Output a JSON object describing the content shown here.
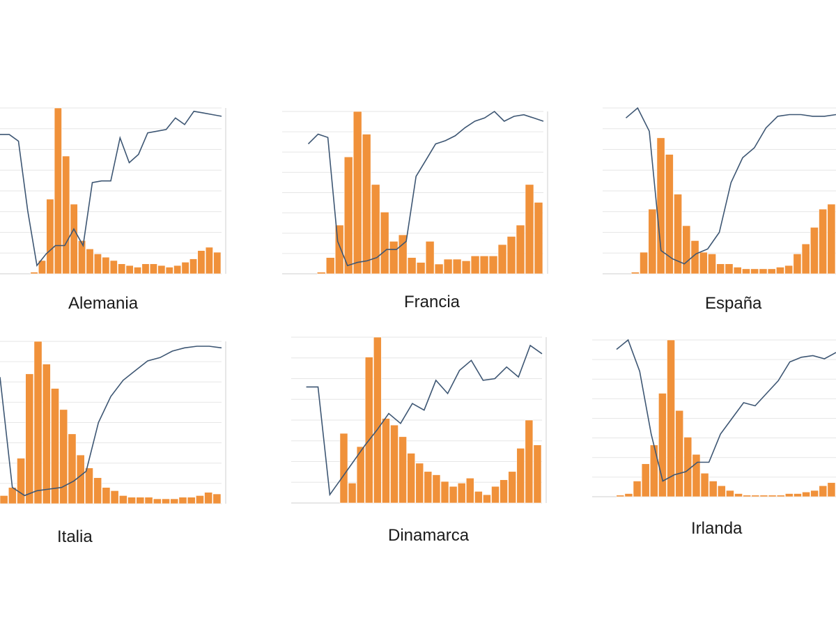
{
  "colors": {
    "bar": "#f0913a",
    "bar_edge": "#ffffff",
    "line": "#3d5673",
    "grid": "#e6e6e6",
    "axis": "#cfcfcf"
  },
  "chart_data": [
    {
      "type": "bar",
      "title": "Alemania",
      "series": [
        {
          "name": "",
          "type": "bar",
          "values": [
            0,
            0,
            0,
            1,
            8,
            45,
            100,
            71,
            42,
            20,
            15,
            12,
            10,
            8,
            6,
            5,
            4,
            6,
            6,
            5,
            4,
            5,
            7,
            9,
            14,
            16,
            13
          ]
        },
        {
          "name": "",
          "type": "line",
          "values": [
            84,
            84,
            80,
            38,
            5,
            12,
            17,
            17,
            27,
            17,
            55,
            56,
            56,
            82,
            67,
            72,
            85,
            86,
            87,
            94,
            90,
            98,
            97,
            96,
            95
          ]
        }
      ],
      "ylim": [
        0,
        100
      ],
      "y2lim": [
        0,
        100
      ],
      "grid": true
    },
    {
      "type": "bar",
      "title": "Francia",
      "series": [
        {
          "name": "",
          "type": "bar",
          "values": [
            0,
            0,
            0,
            1,
            10,
            30,
            72,
            100,
            86,
            55,
            38,
            20,
            24,
            10,
            7,
            20,
            6,
            9,
            9,
            8,
            11,
            11,
            11,
            18,
            23,
            30,
            55,
            44
          ]
        },
        {
          "name": "",
          "type": "line",
          "values": [
            80,
            86,
            84,
            20,
            5,
            7,
            8,
            10,
            15,
            15,
            20,
            60,
            70,
            80,
            82,
            85,
            90,
            94,
            96,
            100,
            94,
            97,
            98,
            96,
            94
          ]
        }
      ],
      "ylim": [
        0,
        100
      ],
      "y2lim": [
        0,
        100
      ],
      "grid": true
    },
    {
      "type": "bar",
      "title": "España",
      "series": [
        {
          "name": "",
          "type": "bar",
          "values": [
            0,
            0,
            1,
            13,
            39,
            82,
            72,
            48,
            29,
            20,
            13,
            12,
            6,
            6,
            4,
            3,
            3,
            3,
            3,
            4,
            5,
            12,
            18,
            28,
            39,
            42
          ]
        },
        {
          "name": "",
          "type": "line",
          "values": [
            94,
            100,
            86,
            14,
            9,
            6,
            12,
            15,
            25,
            55,
            70,
            76,
            88,
            95,
            96,
            96,
            95,
            95,
            96
          ]
        }
      ],
      "ylim": [
        0,
        100
      ],
      "y2lim": [
        0,
        100
      ],
      "grid": true
    },
    {
      "type": "bar",
      "title": "Italia",
      "series": [
        {
          "name": "",
          "type": "bar",
          "values": [
            5,
            10,
            28,
            80,
            100,
            86,
            71,
            58,
            43,
            30,
            22,
            16,
            10,
            8,
            5,
            4,
            4,
            4,
            3,
            3,
            3,
            4,
            4,
            5,
            7,
            6
          ]
        },
        {
          "name": "",
          "type": "line",
          "values": [
            78,
            10,
            5,
            8,
            9,
            10,
            14,
            20,
            50,
            66,
            76,
            82,
            88,
            90,
            94,
            96,
            97,
            97,
            96
          ]
        }
      ],
      "ylim": [
        0,
        100
      ],
      "y2lim": [
        0,
        100
      ],
      "grid": true
    },
    {
      "type": "bar",
      "title": "Dinamarca",
      "series": [
        {
          "name": "",
          "type": "bar",
          "values": [
            0,
            0,
            0,
            0,
            42,
            12,
            34,
            88,
            100,
            51,
            47,
            40,
            30,
            24,
            19,
            17,
            13,
            10,
            12,
            15,
            7,
            5,
            10,
            14,
            19,
            33,
            50,
            35
          ]
        },
        {
          "name": "",
          "type": "line",
          "values": [
            70,
            70,
            5,
            15,
            25,
            35,
            44,
            54,
            48,
            60,
            56,
            74,
            66,
            80,
            86,
            74,
            75,
            82,
            76,
            95,
            90
          ]
        }
      ],
      "ylim": [
        0,
        100
      ],
      "y2lim": [
        0,
        100
      ],
      "grid": true
    },
    {
      "type": "bar",
      "title": "Irlanda",
      "series": [
        {
          "name": "",
          "type": "bar",
          "values": [
            0,
            0,
            1,
            2,
            10,
            21,
            33,
            66,
            100,
            55,
            38,
            27,
            15,
            10,
            7,
            4,
            2,
            1,
            1,
            1,
            1,
            1,
            2,
            2,
            3,
            4,
            7,
            9
          ]
        },
        {
          "name": "",
          "type": "line",
          "values": [
            94,
            100,
            80,
            40,
            10,
            14,
            16,
            22,
            22,
            40,
            50,
            60,
            58,
            66,
            74,
            86,
            89,
            90,
            88,
            92
          ]
        }
      ],
      "ylim": [
        0,
        100
      ],
      "y2lim": [
        0,
        100
      ],
      "grid": true
    }
  ]
}
